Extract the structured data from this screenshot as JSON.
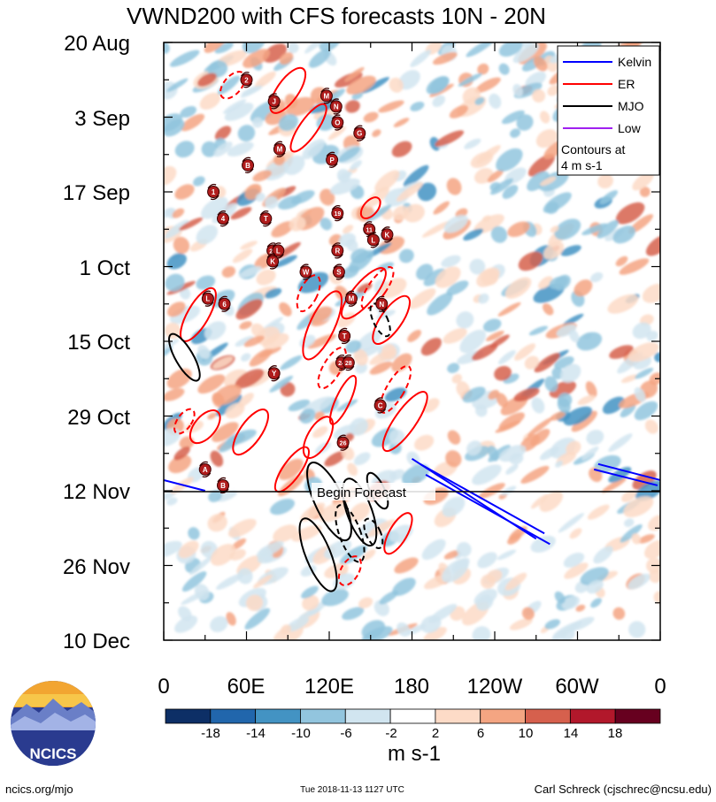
{
  "chart_data": {
    "type": "heatmap",
    "title": "VWND200 with CFS forecasts  10N - 20N",
    "y_tick_labels": [
      "20 Aug",
      "3 Sep",
      "17 Sep",
      "1 Oct",
      "15 Oct",
      "29 Oct",
      "12 Nov",
      "26 Nov",
      "10 Dec"
    ],
    "x_tick_labels": [
      "0",
      "60E",
      "120E",
      "180",
      "120W",
      "60W",
      "0"
    ],
    "xlim_deg_east": [
      0,
      360
    ],
    "ylim_dates": [
      "2018-08-20",
      "2018-12-10"
    ],
    "forecast_start_date": "2018-11-12",
    "forecast_label": "Begin Forecast",
    "colorbar": {
      "unit": "m s-1",
      "tick_labels": [
        "-18",
        "-14",
        "-10",
        "-6",
        "-2",
        "2",
        "6",
        "10",
        "14",
        "18"
      ],
      "boundaries": [
        -18,
        -14,
        -10,
        -6,
        -2,
        2,
        6,
        10,
        14,
        18
      ],
      "colors": [
        "#0d2f66",
        "#2166ac",
        "#4393c3",
        "#92c5de",
        "#d1e5f0",
        "#ffffff",
        "#fddbc7",
        "#f4a582",
        "#d6604d",
        "#b2182b",
        "#67001f"
      ]
    },
    "legend": {
      "position": "top-right",
      "entries": [
        {
          "name": "Kelvin",
          "color": "#0000ff"
        },
        {
          "name": "ER",
          "color": "#ff0000"
        },
        {
          "name": "MJO",
          "color": "#000000"
        },
        {
          "name": "Low",
          "color": "#a020f0"
        }
      ],
      "note_line1": "Contours at",
      "note_line2": "4 m s-1"
    },
    "contour_interval_ms": 4,
    "storm_labels": [
      {
        "label": "2",
        "lon": 60,
        "date": "2018-08-27"
      },
      {
        "label": "J",
        "lon": 80,
        "date": "2018-08-31"
      },
      {
        "label": "M",
        "lon": 118,
        "date": "2018-08-30"
      },
      {
        "label": "N",
        "lon": 125,
        "date": "2018-09-01"
      },
      {
        "label": "O",
        "lon": 126,
        "date": "2018-09-04"
      },
      {
        "label": "G",
        "lon": 142,
        "date": "2018-09-06"
      },
      {
        "label": "M",
        "lon": 84,
        "date": "2018-09-09"
      },
      {
        "label": "P",
        "lon": 122,
        "date": "2018-09-11"
      },
      {
        "label": "B",
        "lon": 61,
        "date": "2018-09-12"
      },
      {
        "label": "1",
        "lon": 36,
        "date": "2018-09-17"
      },
      {
        "label": "19",
        "lon": 126,
        "date": "2018-09-21"
      },
      {
        "label": "4",
        "lon": 43,
        "date": "2018-09-22"
      },
      {
        "label": "T",
        "lon": 74,
        "date": "2018-09-22"
      },
      {
        "label": "11",
        "lon": 149,
        "date": "2018-09-24"
      },
      {
        "label": "L",
        "lon": 152,
        "date": "2018-09-26"
      },
      {
        "label": "K",
        "lon": 162,
        "date": "2018-09-25"
      },
      {
        "label": "20",
        "lon": 79,
        "date": "2018-09-28"
      },
      {
        "label": "L",
        "lon": 83,
        "date": "2018-09-28"
      },
      {
        "label": "K",
        "lon": 79,
        "date": "2018-09-30"
      },
      {
        "label": "R",
        "lon": 126,
        "date": "2018-09-28"
      },
      {
        "label": "W",
        "lon": 103,
        "date": "2018-10-02"
      },
      {
        "label": "S",
        "lon": 127,
        "date": "2018-10-02"
      },
      {
        "label": "L",
        "lon": 32,
        "date": "2018-10-07"
      },
      {
        "label": "6",
        "lon": 44,
        "date": "2018-10-08"
      },
      {
        "label": "M",
        "lon": 136,
        "date": "2018-10-07"
      },
      {
        "label": "N",
        "lon": 158,
        "date": "2018-10-08"
      },
      {
        "label": "T",
        "lon": 131,
        "date": "2018-10-14"
      },
      {
        "label": "24",
        "lon": 129,
        "date": "2018-10-19"
      },
      {
        "label": "28",
        "lon": 134,
        "date": "2018-10-19"
      },
      {
        "label": "Y",
        "lon": 80,
        "date": "2018-10-21"
      },
      {
        "label": "C",
        "lon": 157,
        "date": "2018-10-27"
      },
      {
        "label": "26",
        "lon": 130,
        "date": "2018-11-03"
      },
      {
        "label": "A",
        "lon": 30,
        "date": "2018-11-08"
      },
      {
        "label": "B",
        "lon": 43,
        "date": "2018-11-11"
      }
    ]
  },
  "legend_labels": {
    "kelvin": "Kelvin",
    "er": "ER",
    "mjo": "MJO",
    "low": "Low",
    "note1": "Contours at",
    "note2": "4 m s-1"
  },
  "footer": {
    "logo_text": "NCICS",
    "site": "ncics.org/mjo",
    "timestamp": "Tue 2018-11-13 1127 UTC",
    "author": "Carl Schreck (cjschrec@ncsu.edu)"
  }
}
